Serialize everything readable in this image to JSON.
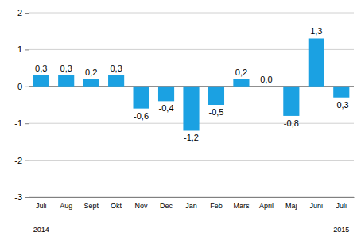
{
  "chart_data": {
    "type": "bar",
    "categories": [
      "Juli",
      "Aug",
      "Sept",
      "Okt",
      "Nov",
      "Dec",
      "Jan",
      "Feb",
      "Mars",
      "April",
      "Maj",
      "Juni",
      "Juli"
    ],
    "values": [
      0.3,
      0.3,
      0.2,
      0.3,
      -0.6,
      -0.4,
      -1.2,
      -0.5,
      0.2,
      0.0,
      -0.8,
      1.3,
      -0.3
    ],
    "value_labels": [
      "0,3",
      "0,3",
      "0,2",
      "0,3",
      "-0,6",
      "-0,4",
      "-1,2",
      "-0,5",
      "0,2",
      "0,0",
      "-0,8",
      "1,3",
      "-0,3"
    ],
    "color": "#1ba1e2",
    "ylim": [
      -3,
      2
    ],
    "yticks": [
      -3,
      -2,
      -1,
      0,
      1,
      2
    ],
    "grid": true,
    "data_labels": true,
    "annotations": [
      {
        "text": "2014",
        "x": 0
      },
      {
        "text": "2015",
        "x": 12
      }
    ]
  }
}
